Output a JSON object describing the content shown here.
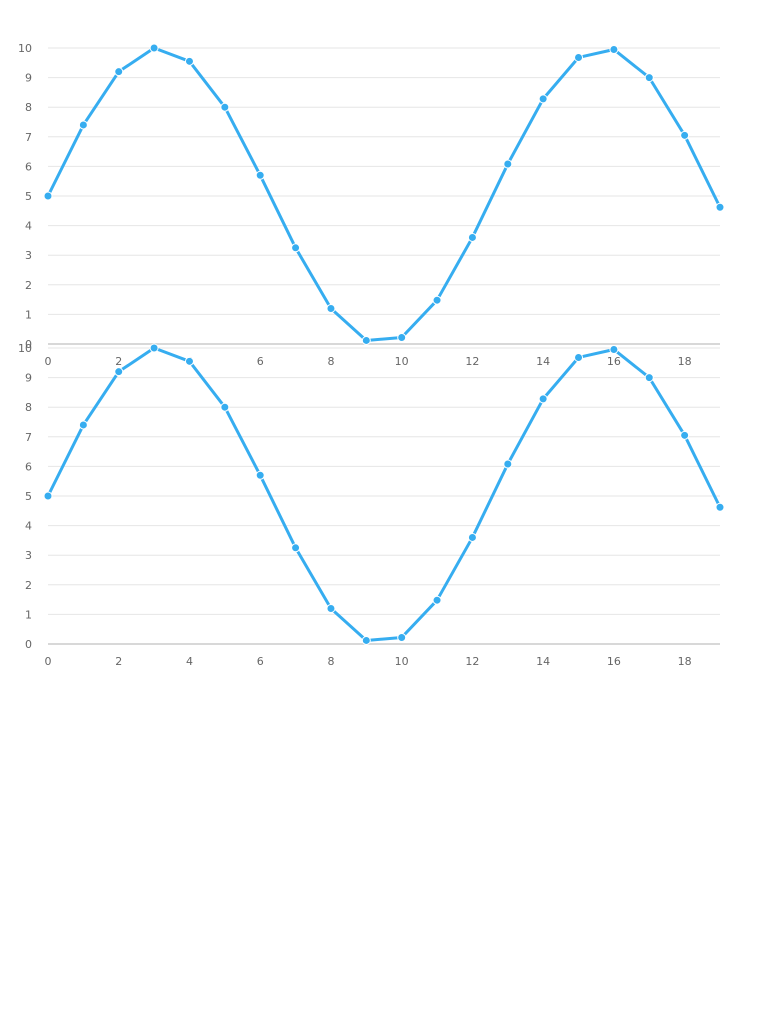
{
  "chart_data": [
    {
      "type": "line",
      "title": "",
      "xlabel": "",
      "ylabel": "",
      "x": [
        0,
        1,
        2,
        3,
        4,
        5,
        6,
        7,
        8,
        9,
        10,
        11,
        12,
        13,
        14,
        15,
        16,
        17,
        18,
        19
      ],
      "series": [
        {
          "values": [
            5.0,
            7.4,
            9.2,
            10.0,
            9.55,
            8.0,
            5.7,
            3.25,
            1.2,
            0.12,
            0.22,
            1.48,
            3.6,
            6.08,
            8.28,
            9.68,
            9.95,
            9.0,
            7.05,
            4.62
          ],
          "color": "#36adf0"
        }
      ],
      "xlim": [
        0,
        19
      ],
      "ylim": [
        0,
        10
      ],
      "x_ticks": [
        0,
        2,
        4,
        6,
        8,
        10,
        12,
        14,
        16,
        18
      ],
      "y_ticks": [
        0,
        1,
        2,
        3,
        4,
        5,
        6,
        7,
        8,
        9,
        10
      ],
      "grid": "horizontal",
      "legend": "none"
    },
    {
      "type": "line",
      "title": "",
      "xlabel": "",
      "ylabel": "",
      "x": [
        0,
        1,
        2,
        3,
        4,
        5,
        6,
        7,
        8,
        9,
        10,
        11,
        12,
        13,
        14,
        15,
        16,
        17,
        18,
        19
      ],
      "series": [
        {
          "values": [
            5.0,
            7.4,
            9.2,
            10.0,
            9.55,
            8.0,
            5.7,
            3.25,
            1.2,
            0.12,
            0.22,
            1.48,
            3.6,
            6.08,
            8.28,
            9.68,
            9.95,
            9.0,
            7.05,
            4.62
          ],
          "color": "#36adf0"
        }
      ],
      "xlim": [
        0,
        19
      ],
      "ylim": [
        0,
        10
      ],
      "x_ticks": [
        0,
        2,
        4,
        6,
        8,
        10,
        12,
        14,
        16,
        18
      ],
      "y_ticks": [
        0,
        1,
        2,
        3,
        4,
        5,
        6,
        7,
        8,
        9,
        10
      ],
      "grid": "horizontal",
      "legend": "none"
    }
  ],
  "colors": {
    "series": "#36adf0",
    "grid": "#e6e6e6",
    "axis": "#cccccc",
    "tick_text": "#666666"
  }
}
